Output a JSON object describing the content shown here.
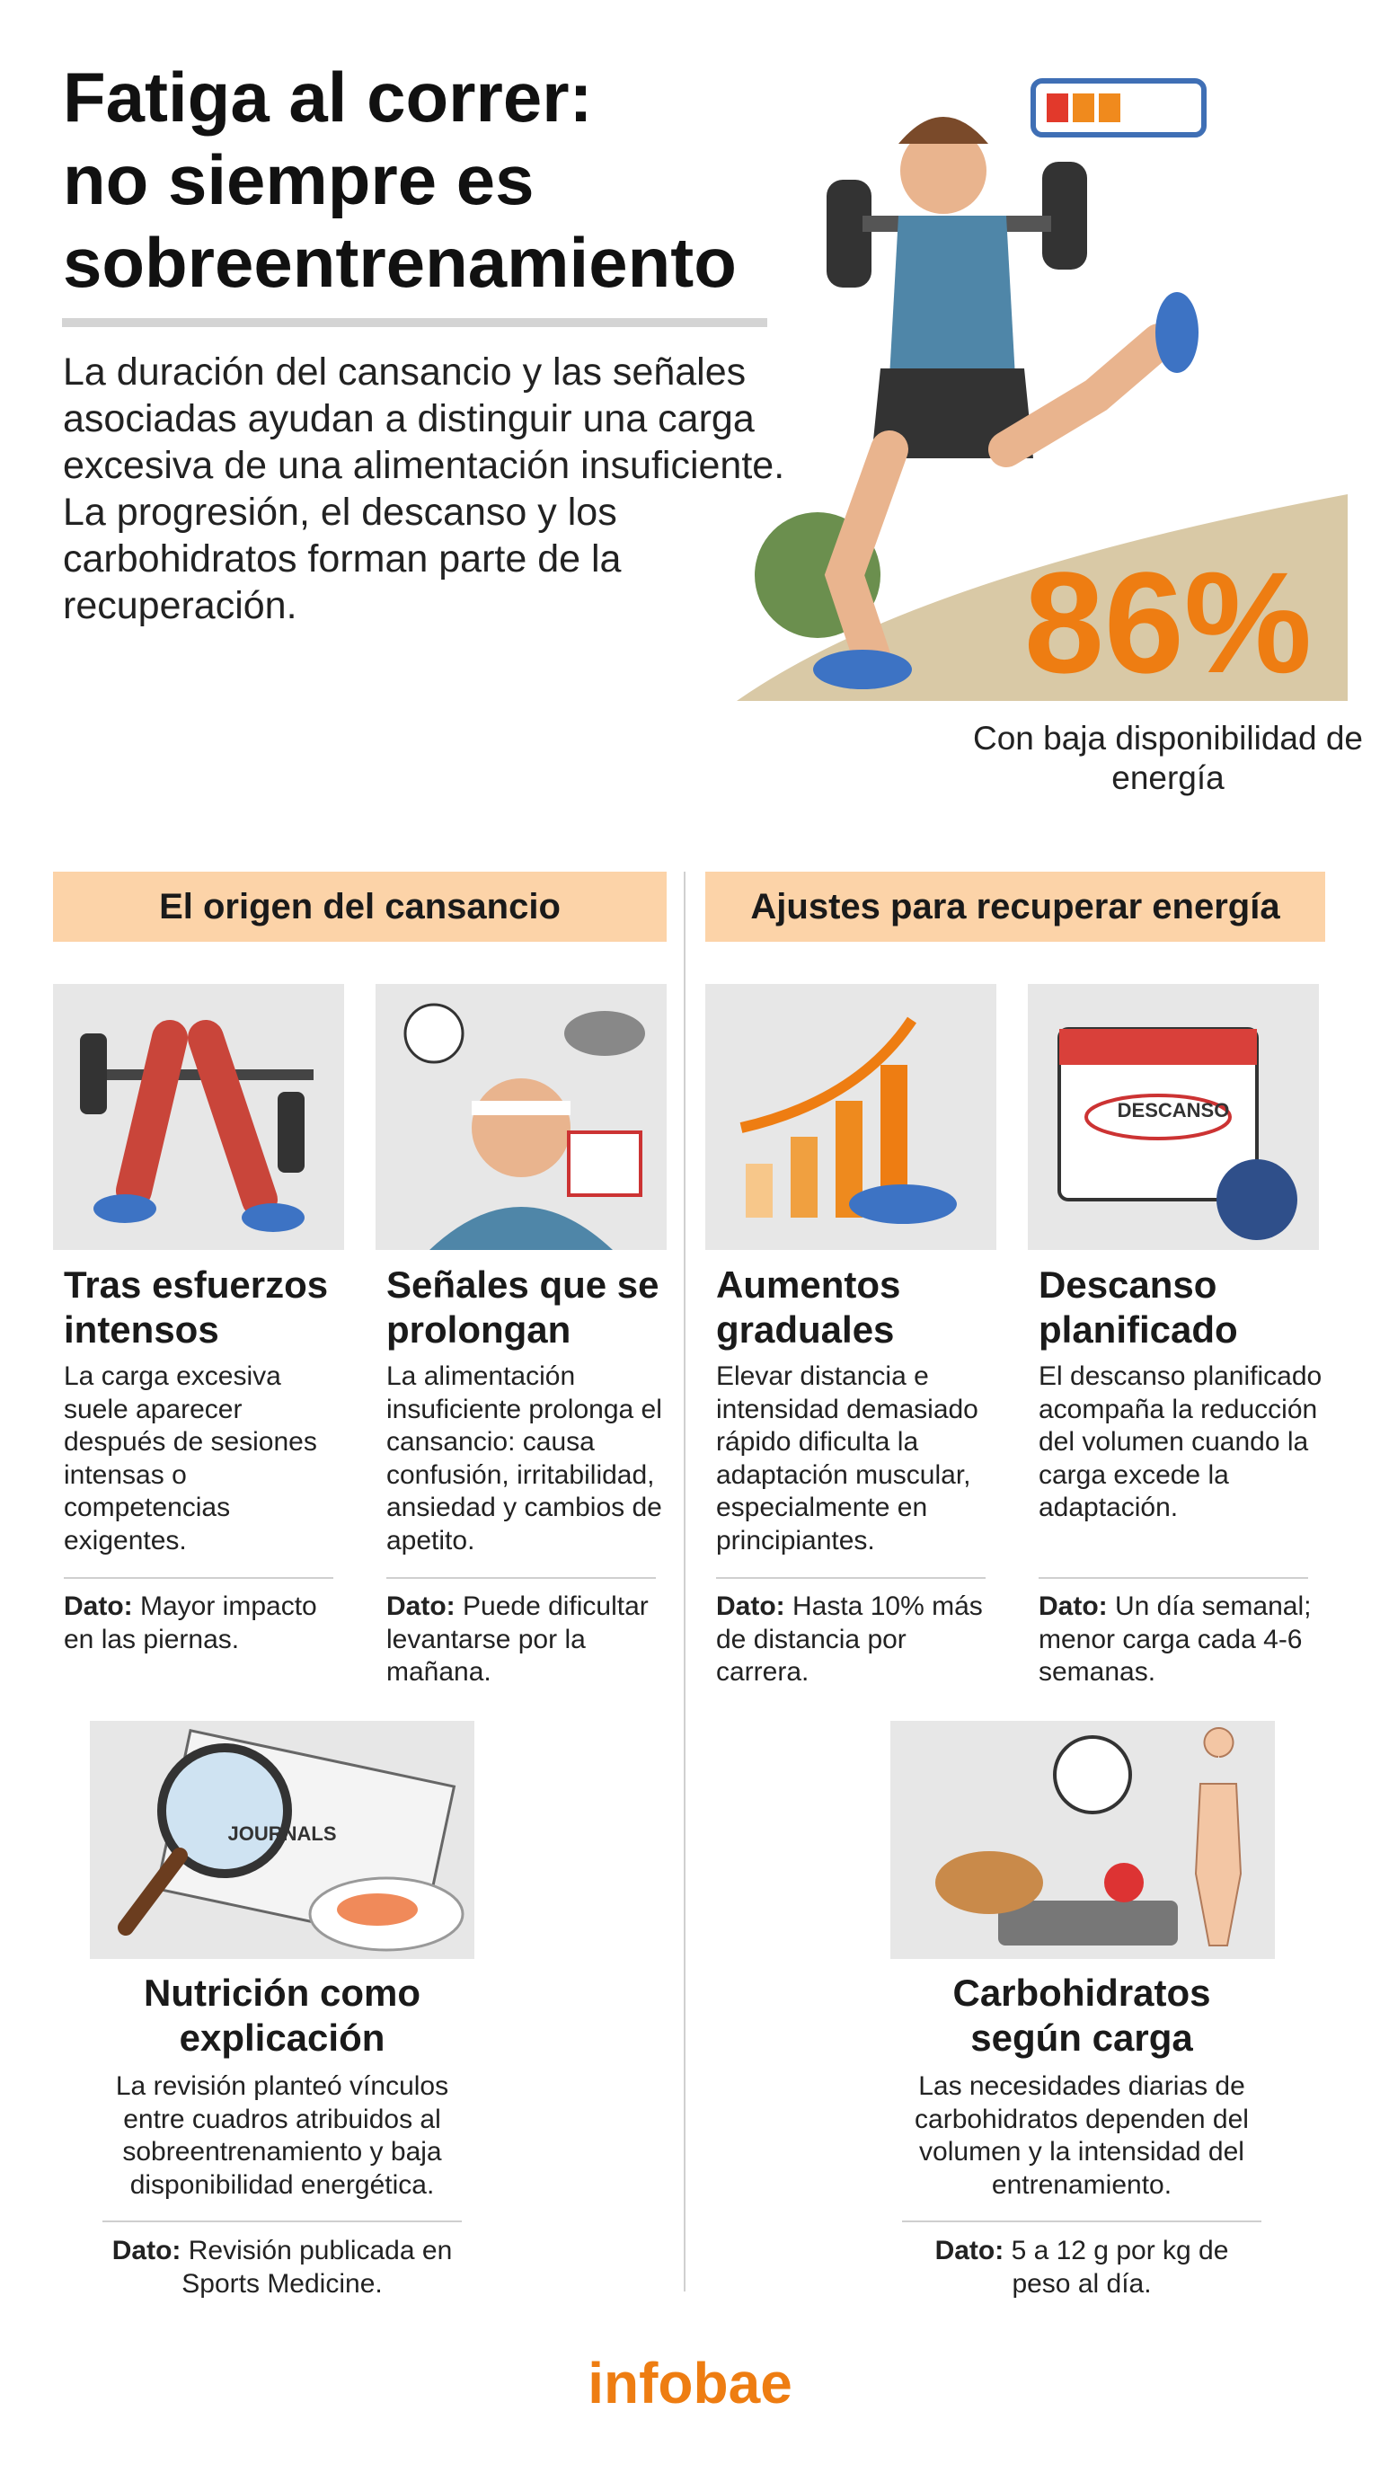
{
  "header": {
    "title": [
      "Fatiga al correr:",
      "no siempre es",
      "sobreentrenamiento"
    ],
    "intro": "La duración del cansancio y las señales asociadas ayudan a distinguir una carga excesiva de una alimentación insuficiente. La progresión, el descanso y los carbohidratos forman parte de la recuperación."
  },
  "stat": {
    "value": "86%",
    "label": "Con baja disponibilidad de energía"
  },
  "sections": [
    {
      "heading": "El origen del cansancio",
      "cards": [
        {
          "title": "Tras esfuerzos intensos",
          "body": "La carga excesiva suele aparecer después de sesiones intensas o competencias exigentes.",
          "fact_label": "Dato:",
          "fact_text": "Mayor impacto en las piernas."
        },
        {
          "title": "Señales que se prolongan",
          "body": "La alimentación insuficiente prolonga el cansancio: causa confusión, irritabilidad, ansiedad y cambios de apetito.",
          "fact_label": "Dato:",
          "fact_text": "Puede dificultar levantarse por la mañana."
        }
      ],
      "feature": {
        "title": "Nutrición como explicación",
        "body": "La revisión planteó vínculos entre cuadros atribuidos al sobreentrenamiento y baja disponibilidad energética.",
        "fact_label": "Dato:",
        "fact_text": "Revisión publicada en Sports Medicine.",
        "image_text": "JOURNALS"
      }
    },
    {
      "heading": "Ajustes para recuperar energía",
      "cards": [
        {
          "title": "Aumentos graduales",
          "body": "Elevar distancia e intensidad demasiado rápido dificulta la adaptación muscular, especialmente en principiantes.",
          "fact_label": "Dato:",
          "fact_text": "Hasta 10% más de distancia por carrera."
        },
        {
          "title": "Descanso planificado",
          "body": "El descanso planificado acompaña la reducción del volumen cuando la carga excede la adaptación.",
          "fact_label": "Dato:",
          "fact_text": "Un día semanal; menor carga cada 4-6 semanas.",
          "image_text": "DESCANSO"
        }
      ],
      "feature": {
        "title": "Carbohidratos según carga",
        "body": "Las necesidades diarias de carbohidratos dependen del volumen y la intensidad del entrenamiento.",
        "fact_label": "Dato:",
        "fact_text": "5 a 12 g por kg de peso al día."
      }
    }
  ],
  "footer": {
    "brand": "infobae"
  }
}
